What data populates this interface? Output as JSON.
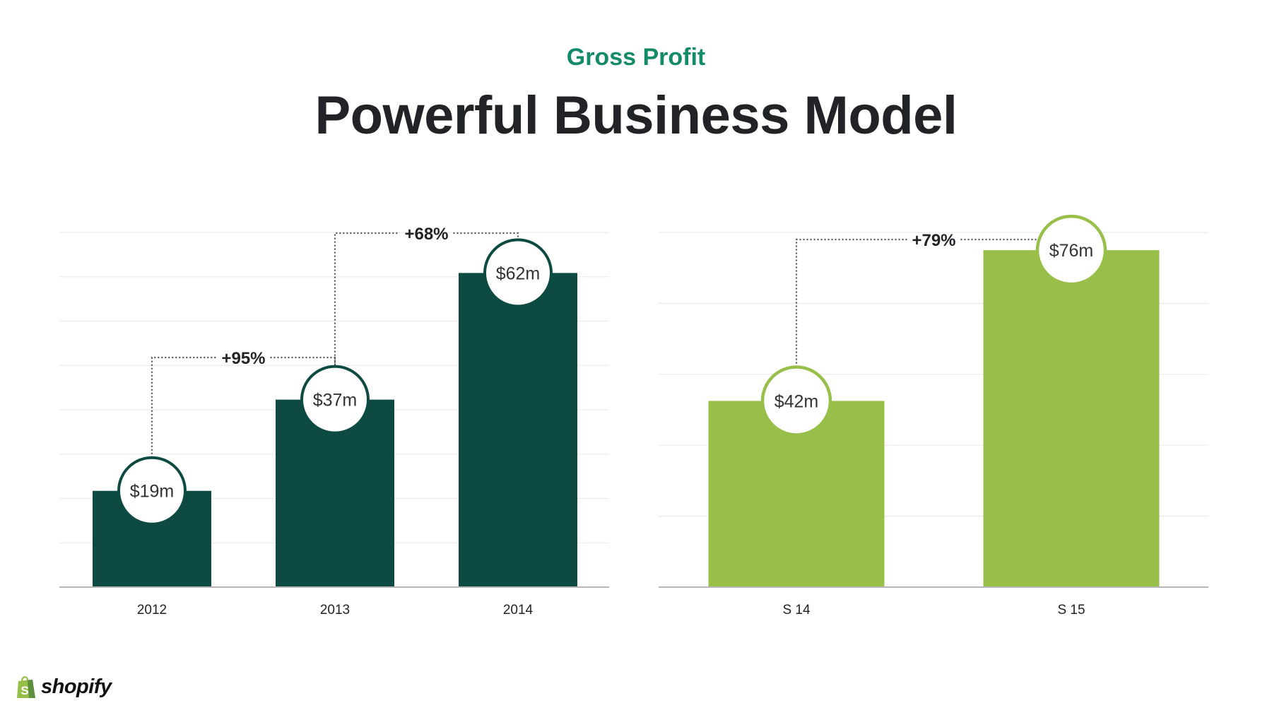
{
  "header": {
    "subtitle": "Gross Profit",
    "title": "Powerful Business Model"
  },
  "brand": {
    "name": "shopify",
    "icon": "shopping-bag-icon"
  },
  "colors": {
    "dark_green": "#0d4a42",
    "light_green": "#99bf4b",
    "accent_text": "#138a68",
    "title_text": "#212326"
  },
  "chart_data": [
    {
      "type": "bar",
      "categories": [
        "2012",
        "2013",
        "2014"
      ],
      "values": [
        19,
        37,
        62
      ],
      "value_labels": [
        "$19m",
        "$37m",
        "$62m"
      ],
      "unit": "$m",
      "color": "#0d4a42",
      "ylim": [
        0,
        70
      ],
      "grid": true,
      "growth_annotations": [
        {
          "from": "2012",
          "to": "2013",
          "label": "+95%"
        },
        {
          "from": "2013",
          "to": "2014",
          "label": "+68%"
        }
      ]
    },
    {
      "type": "bar",
      "categories": [
        "S 14",
        "S 15"
      ],
      "values": [
        42,
        76
      ],
      "value_labels": [
        "$42m",
        "$76m"
      ],
      "unit": "$m",
      "color": "#99bf4b",
      "ylim": [
        0,
        80
      ],
      "grid": true,
      "growth_annotations": [
        {
          "from": "S 14",
          "to": "S 15",
          "label": "+79%"
        }
      ]
    }
  ]
}
